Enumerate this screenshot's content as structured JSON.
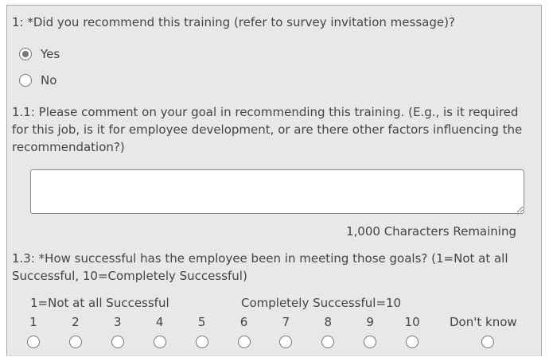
{
  "q1": {
    "label": "1: *Did you recommend this training (refer to survey invitation message)?",
    "options": [
      {
        "label": "Yes",
        "checked": true
      },
      {
        "label": "No",
        "checked": false
      }
    ]
  },
  "q1_1": {
    "label": "1.1: Please comment on your goal in recommending this training. (E.g., is it required for this job, is it for employee development, or are there other factors influencing the recommendation?)",
    "value": "",
    "remaining": "1,000 Characters Remaining"
  },
  "q1_3": {
    "label": "1.3: *How successful has the employee been in meeting those goals? (1=Not at all Successful, 10=Completely Successful)",
    "low_anchor": "1=Not at all Successful",
    "high_anchor": "Completely Successful=10",
    "scale": [
      "1",
      "2",
      "3",
      "4",
      "5",
      "6",
      "7",
      "8",
      "9",
      "10"
    ],
    "dont_know": "Don't know"
  }
}
